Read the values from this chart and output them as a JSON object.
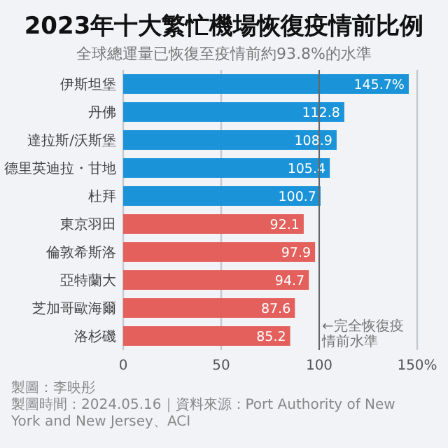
{
  "chart_data": {
    "type": "bar",
    "orientation": "horizontal",
    "title": "2023年十大繁忙機場恢復疫情前比例",
    "subtitle": "全球總運量已恢復至疫情前約93.8%的水準",
    "categories": [
      "伊斯坦堡",
      "丹佛",
      "達拉斯/沃斯堡",
      "德里英迪拉・甘地",
      "杜拜",
      "東京羽田",
      "倫敦希斯洛",
      "亞特蘭大",
      "芝加哥歐海爾",
      "洛杉磯"
    ],
    "values": [
      145.7,
      112.8,
      108.9,
      105.4,
      100.7,
      92.1,
      97.9,
      94.7,
      87.6,
      85.2
    ],
    "value_labels": [
      "145.7%",
      "112.8",
      "108.9",
      "105.4",
      "100.7",
      "92.1",
      "97.9",
      "94.7",
      "87.6",
      "85.2"
    ],
    "colors": [
      "#1a93d8",
      "#1a93d8",
      "#1a93d8",
      "#1a93d8",
      "#1a93d8",
      "#e4605c",
      "#e4605c",
      "#e4605c",
      "#e4605c",
      "#e4605c"
    ],
    "xlim": [
      0,
      150
    ],
    "xticks": [
      0,
      50,
      100,
      {
        "value": 150,
        "label": "150%"
      }
    ],
    "grid": "x",
    "ref_lines": [
      {
        "axis": "x",
        "value": 100,
        "label": "←完全恢復疫情前水準",
        "color": "#666666"
      }
    ],
    "annotations": [
      "製圖：李映彤",
      "製圖時間：2024.05.16｜資料來源：Port Authority of New York and New Jersey、ACI"
    ]
  }
}
